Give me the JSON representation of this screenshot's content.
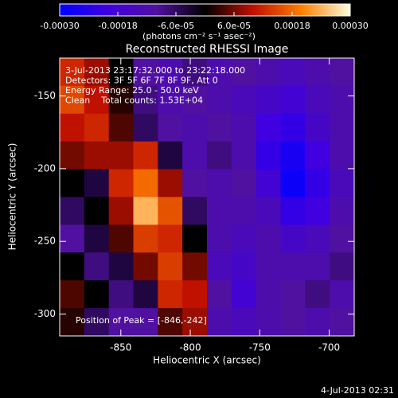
{
  "chart_data": {
    "type": "heatmap",
    "title": "Reconstructed RHESSI Image",
    "xlabel": "Heliocentric X (arcsec)",
    "ylabel": "Heliocentric Y (arcsec)",
    "colorbar_label": "(photons cm⁻² s⁻¹ asec⁻²)",
    "annotations": [
      "3-Jul-2013 23:17:32.000 to 23:22:18.000",
      "Detectors: 3F 5F 6F 7F 8F 9F, Att 0",
      "Energy Range: 25.0 - 50.0 keV",
      "Clean    Total counts: 1.53E+04"
    ],
    "peak_label": "Position of Peak = [-846,-242]",
    "footer": "4-Jul-2013 02:31",
    "xlim": [
      -894,
      -682
    ],
    "xticks": [
      -850,
      -800,
      -750,
      -700
    ],
    "ylim": [
      -315,
      -124
    ],
    "yticks": [
      -150,
      -200,
      -250,
      -300
    ],
    "zlim": [
      -0.0003,
      0.0003
    ],
    "zticks": [
      {
        "value": -0.0003,
        "label": "-0.00030"
      },
      {
        "value": -0.00018,
        "label": "-0.00018"
      },
      {
        "value": -6e-05,
        "label": "-6.0e-05"
      },
      {
        "value": 6e-05,
        "label": "6.0e-05"
      },
      {
        "value": 0.00018,
        "label": "0.00018"
      },
      {
        "value": 0.0003,
        "label": "0.00030"
      }
    ],
    "colormap": [
      "#0000ff",
      "#4000e0",
      "#5010a0",
      "#000000",
      "#c01000",
      "#ff8000",
      "#ffffe0"
    ],
    "z": [
      [
        0.00012,
        8e-05,
        0.0,
        -0.0001,
        -0.00012,
        -8e-05,
        -0.00012,
        -0.0001,
        -0.00012,
        -0.00014,
        -0.00012,
        -0.0001
      ],
      [
        0.00015,
        0.0001,
        2e-05,
        -8e-05,
        -0.00012,
        -0.0001,
        -0.00012,
        -0.00014,
        -0.00016,
        -0.00018,
        -0.00014,
        -0.00012
      ],
      [
        0.0001,
        0.00012,
        4e-05,
        -6e-05,
        -0.0001,
        -0.00012,
        -0.0001,
        -0.00012,
        -0.0002,
        -0.00022,
        -0.00016,
        -0.00012
      ],
      [
        6e-05,
        8e-05,
        8e-05,
        0.00012,
        -4e-05,
        -0.00012,
        -8e-05,
        -0.00012,
        -0.00022,
        -0.00026,
        -0.0002,
        -0.00012
      ],
      [
        0.0,
        -4e-05,
        0.00012,
        0.00018,
        8e-05,
        -0.0001,
        -0.00012,
        -0.0001,
        -0.00018,
        -0.00028,
        -0.00022,
        -0.00014
      ],
      [
        -6e-05,
        0.0,
        8e-05,
        0.00024,
        0.00016,
        -6e-05,
        -0.00012,
        -0.00012,
        -0.00014,
        -0.00022,
        -0.0002,
        -0.00012
      ],
      [
        -0.0001,
        -4e-05,
        4e-05,
        0.00014,
        0.00012,
        0.0,
        -0.00012,
        -0.00014,
        -0.00012,
        -0.00016,
        -0.00014,
        -0.0001
      ],
      [
        0.0,
        -8e-05,
        -4e-05,
        6e-05,
        0.00014,
        6e-05,
        -0.00014,
        -0.00016,
        -0.00012,
        -0.00012,
        -0.00012,
        -8e-05
      ],
      [
        4e-05,
        0.0,
        -8e-05,
        -4e-05,
        0.00012,
        0.0001,
        -0.0001,
        -0.00018,
        -0.00012,
        -0.0001,
        -8e-05,
        -0.00012
      ],
      [
        2e-05,
        -6e-05,
        -0.0001,
        -0.0001,
        4e-05,
        8e-05,
        -0.00012,
        -0.00014,
        -0.00012,
        -0.0001,
        -0.00012,
        -0.0001
      ]
    ]
  }
}
